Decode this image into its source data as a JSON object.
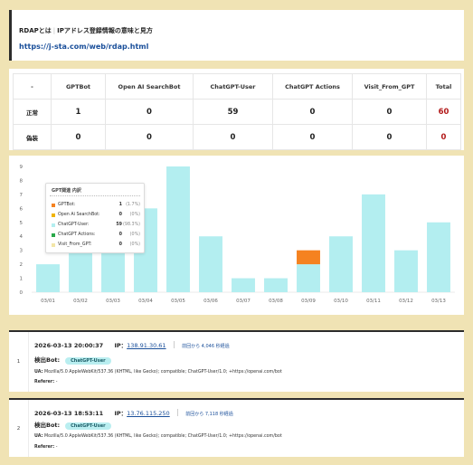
{
  "header": {
    "title": "RDAPとは",
    "subtitle": "IPアドレス登録情報の意味と見方",
    "url": "https://j-sta.com/web/rdap.html"
  },
  "table": {
    "columns": [
      "-",
      "GPTBot",
      "Open AI SearchBot",
      "ChatGPT-User",
      "ChatGPT Actions",
      "Visit_From_GPT",
      "Total"
    ],
    "rows": [
      {
        "label": "正常",
        "values": [
          "1",
          "0",
          "59",
          "0",
          "0"
        ],
        "total": "60"
      },
      {
        "label": "偽装",
        "values": [
          "0",
          "0",
          "0",
          "0",
          "0"
        ],
        "total": "0"
      }
    ]
  },
  "chart_data": {
    "type": "bar",
    "stacked": true,
    "categories": [
      "03/01",
      "03/02",
      "03/03",
      "03/04",
      "03/05",
      "03/06",
      "03/07",
      "03/08",
      "03/09",
      "03/10",
      "03/11",
      "03/12",
      "03/13"
    ],
    "series": [
      {
        "name": "GPTBot",
        "color": "#f58220",
        "values": [
          0,
          0,
          0,
          0,
          0,
          0,
          0,
          0,
          1,
          0,
          0,
          0,
          0
        ]
      },
      {
        "name": "Open Ai SearchBot",
        "color": "#f0b400",
        "values": [
          0,
          0,
          0,
          0,
          0,
          0,
          0,
          0,
          0,
          0,
          0,
          0,
          0
        ]
      },
      {
        "name": "ChatGPT-User",
        "color": "#b3eef0",
        "values": [
          2,
          3,
          3,
          6,
          9,
          4,
          1,
          1,
          2,
          4,
          7,
          3,
          5
        ]
      },
      {
        "name": "ChatGPT Actions",
        "color": "#2aa84a",
        "values": [
          0,
          0,
          0,
          0,
          0,
          0,
          0,
          0,
          0,
          0,
          0,
          0,
          0
        ]
      },
      {
        "name": "Visit_From_GPT",
        "color": "#f3e6a8",
        "values": [
          0,
          0,
          0,
          0,
          0,
          0,
          0,
          0,
          0,
          0,
          0,
          0,
          0
        ]
      }
    ],
    "yticks": [
      "0",
      "1",
      "2",
      "3",
      "4",
      "5",
      "6",
      "7",
      "8",
      "9"
    ],
    "ylim": [
      0,
      9
    ],
    "grid": false,
    "tooltip": {
      "title": "GPT関連 内訳",
      "rows": [
        {
          "name": "GPTBot:",
          "value": "1",
          "pct": "(1.7%)",
          "color": "#f58220"
        },
        {
          "name": "Open Ai SearchBot:",
          "value": "0",
          "pct": "(0%)",
          "color": "#f0b400"
        },
        {
          "name": "ChatGPT-User:",
          "value": "59",
          "pct": "(98.3%)",
          "color": "#b3eef0"
        },
        {
          "name": "ChatGPT Actions:",
          "value": "0",
          "pct": "(0%)",
          "color": "#2aa84a"
        },
        {
          "name": "Visit_From_GPT:",
          "value": "0",
          "pct": "(0%)",
          "color": "#f3e6a8"
        }
      ]
    }
  },
  "entries": [
    {
      "index": "1",
      "datetime": "2026-03-13 20:00:37",
      "ip_label": "IP：",
      "ip": "138.91.30.61",
      "since": "前回から 4,046 秒経過",
      "detected_label": "検出Bot:",
      "bot": "ChatGPT-User",
      "ua_label": "UA:",
      "ua": "Mozilla/5.0 AppleWebKit/537.36 (KHTML, like Gecko); compatible; ChatGPT-User/1.0; +https://openai.com/bot",
      "referer_label": "Referer:",
      "referer": "-"
    },
    {
      "index": "2",
      "datetime": "2026-03-13 18:53:11",
      "ip_label": "IP：",
      "ip": "13.76.115.250",
      "since": "前回から 7,118 秒経過",
      "detected_label": "検出Bot:",
      "bot": "ChatGPT-User",
      "ua_label": "UA:",
      "ua": "Mozilla/5.0 AppleWebKit/537.36 (KHTML, like Gecko); compatible; ChatGPT-User/1.0; +https://openai.com/bot",
      "referer_label": "Referer:",
      "referer": "-"
    }
  ]
}
